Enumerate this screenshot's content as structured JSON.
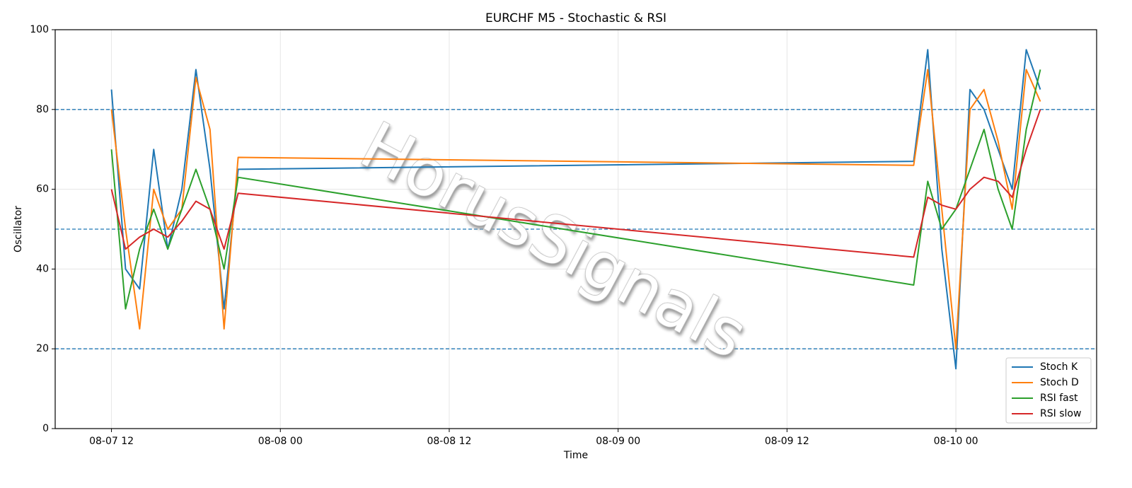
{
  "chart_data": {
    "type": "line",
    "title": "EURCHF M5 - Stochastic & RSI",
    "x_label": "Time",
    "y_label": "Oscillator",
    "x": [
      "08-07 12",
      "08-07 13",
      "08-07 14",
      "08-07 15",
      "08-07 16",
      "08-07 17",
      "08-07 18",
      "08-07 19",
      "08-07 20",
      "08-07 21",
      "08-09 21",
      "08-09 22",
      "08-09 23",
      "08-10 00",
      "08-10 01",
      "08-10 02",
      "08-10 03",
      "08-10 04",
      "08-10 05",
      "08-10 06"
    ],
    "series": [
      {
        "name": "Stoch K",
        "color": "#1f77b4",
        "values": [
          85,
          40,
          35,
          70,
          45,
          60,
          90,
          65,
          30,
          65,
          67,
          95,
          45,
          15,
          85,
          80,
          70,
          60,
          95,
          85
        ]
      },
      {
        "name": "Stoch D",
        "color": "#ff7f0e",
        "values": [
          80,
          50,
          25,
          60,
          50,
          55,
          88,
          75,
          25,
          68,
          66,
          90,
          55,
          20,
          80,
          85,
          72,
          55,
          90,
          82
        ]
      },
      {
        "name": "RSI fast",
        "color": "#2ca02c",
        "values": [
          70,
          30,
          45,
          55,
          45,
          55,
          65,
          55,
          40,
          63,
          36,
          62,
          50,
          55,
          65,
          75,
          60,
          50,
          75,
          90
        ]
      },
      {
        "name": "RSI slow",
        "color": "#d62728",
        "values": [
          60,
          45,
          48,
          50,
          48,
          52,
          57,
          55,
          45,
          59,
          43,
          58,
          56,
          55,
          60,
          63,
          62,
          58,
          70,
          80
        ]
      }
    ],
    "xlim": [
      "08-07 08",
      "08-10 10"
    ],
    "xticks": [
      "08-07 12",
      "08-08 00",
      "08-08 12",
      "08-09 00",
      "08-09 12",
      "08-10 00"
    ],
    "ylim": [
      0,
      100
    ],
    "yticks": [
      0,
      20,
      40,
      60,
      80,
      100
    ],
    "hlines": [
      20,
      50,
      80
    ],
    "hline_color": "#1f77b4",
    "grid": true,
    "legend": "lower right",
    "watermark": "HorusSignals"
  }
}
